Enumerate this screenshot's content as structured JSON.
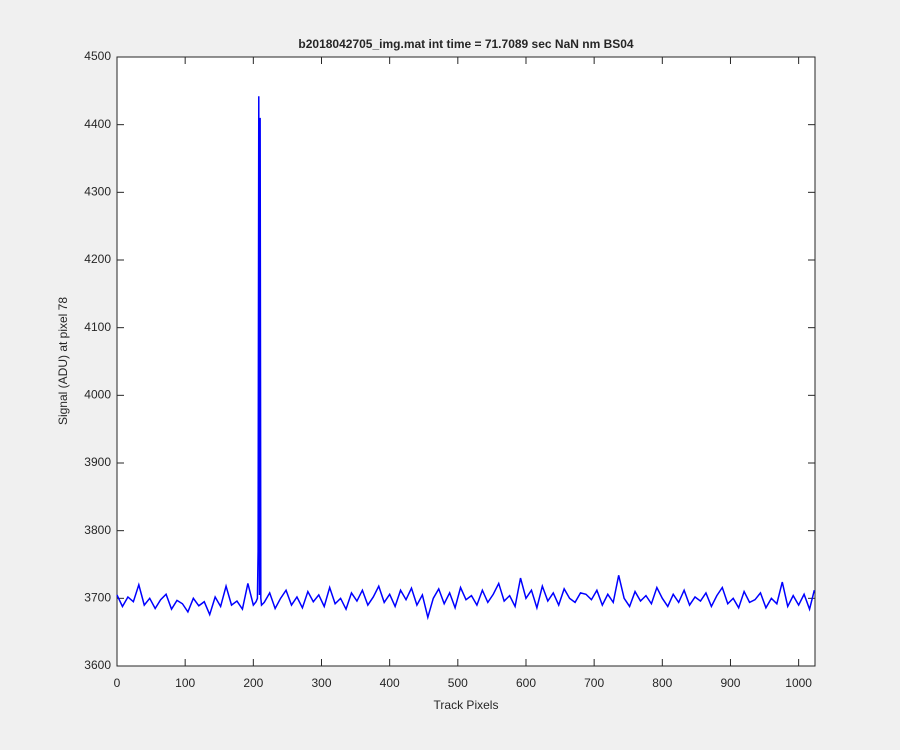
{
  "chart_data": {
    "type": "line",
    "title": "b2018042705_img.mat int time = 71.7089 sec  NaN nm BS04",
    "x_label": "Track Pixels",
    "y_label": "Signal (ADU) at pixel 78",
    "color": "#0000ff",
    "x": [
      0,
      8,
      16,
      24,
      32,
      40,
      48,
      56,
      64,
      72,
      80,
      88,
      96,
      104,
      112,
      120,
      128,
      136,
      144,
      152,
      160,
      168,
      176,
      184,
      192,
      200,
      204,
      206,
      207,
      208,
      209,
      210,
      211,
      212,
      216,
      224,
      232,
      240,
      248,
      256,
      264,
      272,
      280,
      288,
      296,
      304,
      312,
      320,
      328,
      336,
      344,
      352,
      360,
      368,
      376,
      384,
      392,
      400,
      408,
      416,
      424,
      432,
      440,
      448,
      456,
      464,
      472,
      480,
      488,
      496,
      504,
      512,
      520,
      528,
      536,
      544,
      552,
      560,
      568,
      576,
      584,
      592,
      600,
      608,
      616,
      624,
      632,
      640,
      648,
      656,
      664,
      672,
      680,
      688,
      696,
      704,
      712,
      720,
      728,
      736,
      744,
      752,
      760,
      768,
      776,
      784,
      792,
      800,
      808,
      816,
      824,
      832,
      840,
      848,
      856,
      864,
      872,
      880,
      888,
      896,
      904,
      912,
      920,
      928,
      936,
      944,
      952,
      960,
      968,
      976,
      984,
      992,
      1000,
      1008,
      1016,
      1023
    ],
    "values": [
      3705,
      3688,
      3702,
      3695,
      3720,
      3690,
      3700,
      3685,
      3698,
      3706,
      3684,
      3697,
      3692,
      3680,
      3700,
      3689,
      3695,
      3676,
      3702,
      3688,
      3718,
      3690,
      3696,
      3684,
      3722,
      3690,
      3695,
      3700,
      3770,
      4442,
      3705,
      4410,
      3700,
      3690,
      3694,
      3708,
      3685,
      3700,
      3712,
      3690,
      3702,
      3686,
      3710,
      3695,
      3705,
      3688,
      3716,
      3692,
      3700,
      3684,
      3708,
      3696,
      3712,
      3690,
      3702,
      3718,
      3694,
      3706,
      3688,
      3712,
      3698,
      3715,
      3690,
      3705,
      3672,
      3700,
      3714,
      3692,
      3708,
      3686,
      3716,
      3698,
      3704,
      3690,
      3712,
      3694,
      3706,
      3722,
      3696,
      3704,
      3688,
      3730,
      3700,
      3712,
      3686,
      3718,
      3696,
      3708,
      3690,
      3714,
      3700,
      3694,
      3708,
      3706,
      3698,
      3712,
      3690,
      3706,
      3694,
      3734,
      3700,
      3688,
      3710,
      3696,
      3704,
      3692,
      3716,
      3700,
      3688,
      3706,
      3694,
      3712,
      3690,
      3702,
      3696,
      3708,
      3688,
      3704,
      3716,
      3692,
      3700,
      3686,
      3710,
      3694,
      3698,
      3708,
      3686,
      3700,
      3692,
      3724,
      3688,
      3704,
      3690,
      3706,
      3684,
      3712
    ],
    "xlim": [
      0,
      1024
    ],
    "xticks": [
      0,
      100,
      200,
      300,
      400,
      500,
      600,
      700,
      800,
      900,
      1000
    ],
    "ylim": [
      3600,
      4500
    ],
    "yticks": [
      3600,
      3700,
      3800,
      3900,
      4000,
      4100,
      4200,
      4300,
      4400,
      4500
    ]
  }
}
